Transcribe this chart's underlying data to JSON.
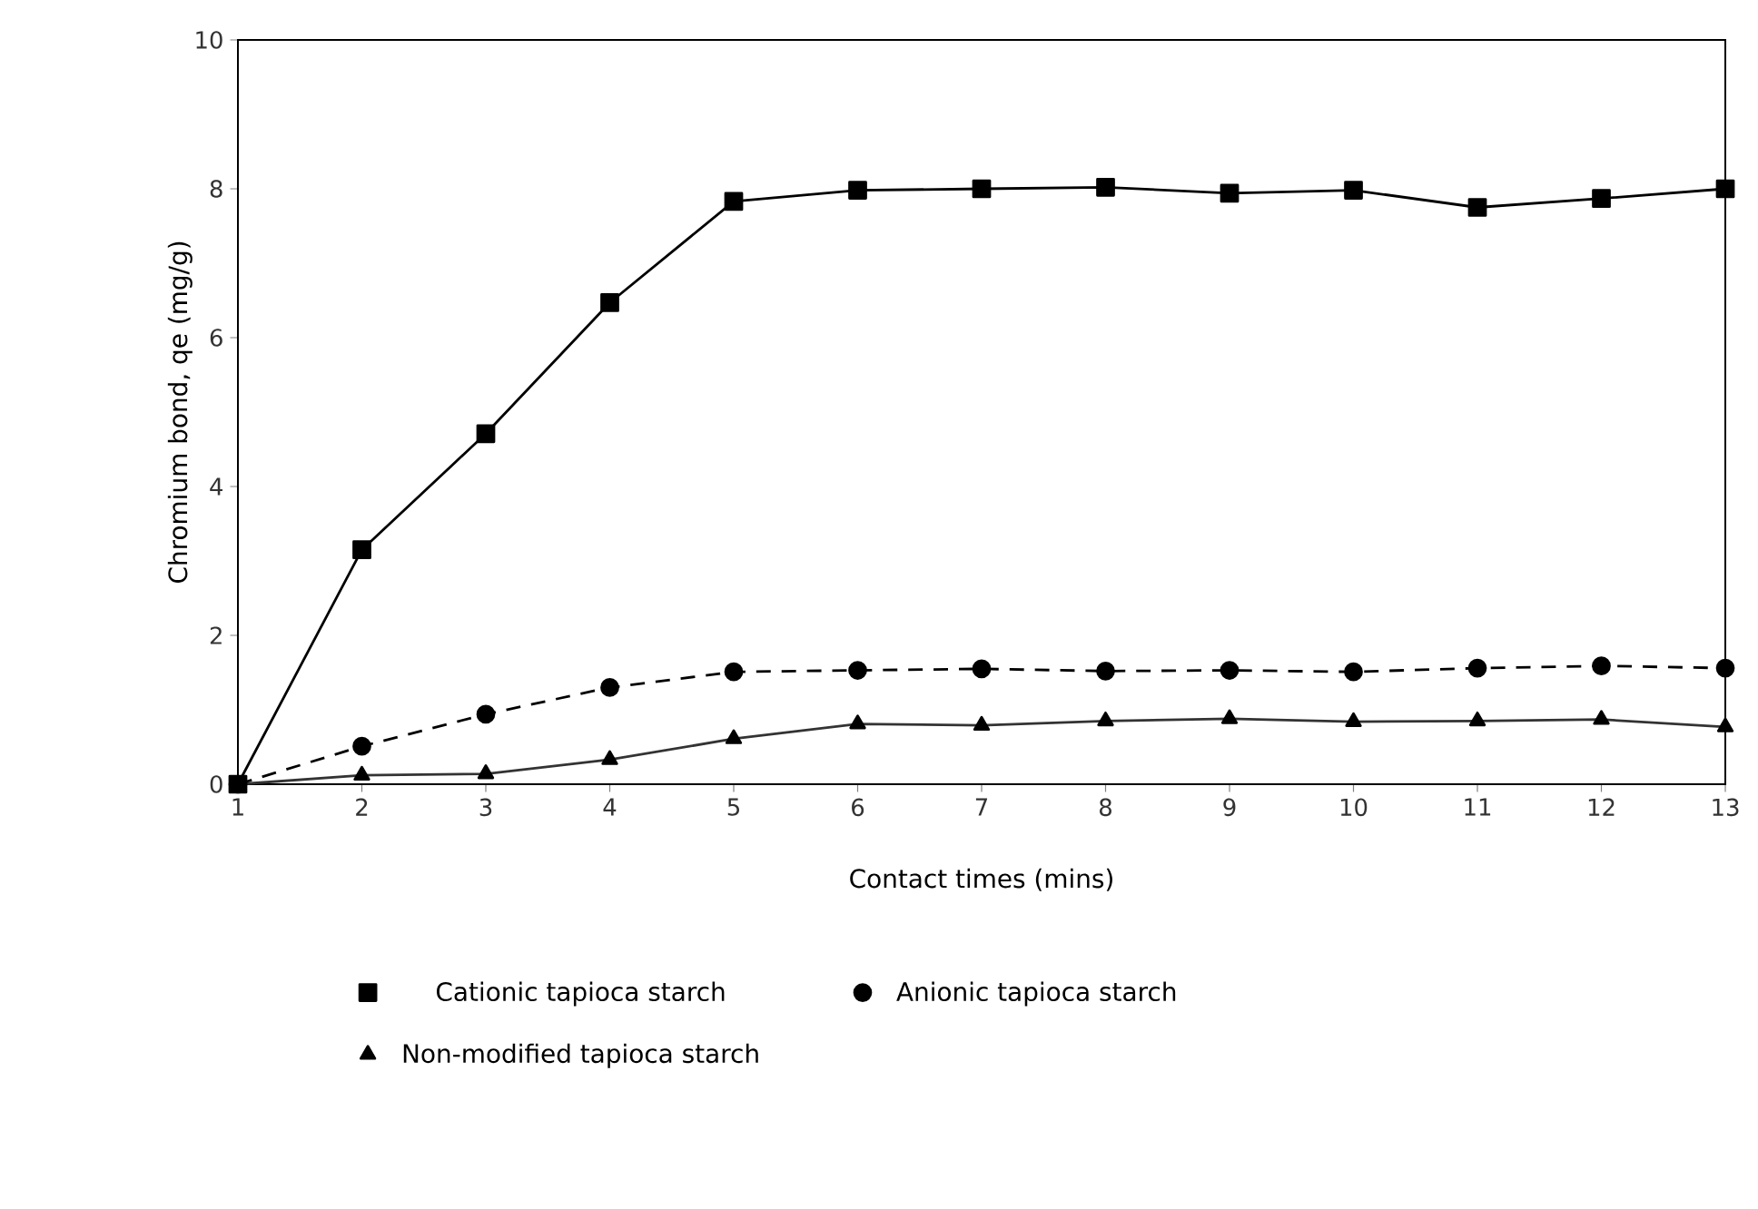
{
  "chart_data": {
    "type": "line",
    "xlabel": "Contact times (mins)",
    "ylabel": "Chromium bond, qe (mg/g)",
    "x": [
      1,
      2,
      3,
      4,
      5,
      6,
      7,
      8,
      9,
      10,
      11,
      12,
      13
    ],
    "xlim": [
      1,
      13
    ],
    "xticks": [
      1,
      2,
      3,
      4,
      5,
      6,
      7,
      8,
      9,
      10,
      11,
      12,
      13
    ],
    "ylim": [
      0,
      10
    ],
    "yticks": [
      0,
      2,
      4,
      6,
      8,
      10
    ],
    "legend": "bottom",
    "series": [
      {
        "name": "Cationic tapioca starch",
        "color": "#000000",
        "marker": "square",
        "line_style": "solid",
        "values": [
          0,
          3.15,
          4.71,
          6.47,
          7.83,
          7.98,
          8.0,
          8.02,
          7.94,
          7.98,
          7.75,
          7.87,
          8.0
        ]
      },
      {
        "name": "Anionic tapioca starch",
        "color": "#000000",
        "marker": "circle",
        "line_style": "dashed",
        "values": [
          0,
          0.51,
          0.94,
          1.3,
          1.51,
          1.53,
          1.55,
          1.52,
          1.53,
          1.51,
          1.56,
          1.59,
          1.56
        ]
      },
      {
        "name": "Non-modified tapioca starch",
        "color": "#333333",
        "marker": "triangle",
        "line_style": "solid",
        "values": [
          0,
          0.12,
          0.14,
          0.33,
          0.61,
          0.81,
          0.79,
          0.85,
          0.88,
          0.84,
          0.85,
          0.87,
          0.77
        ]
      }
    ]
  }
}
